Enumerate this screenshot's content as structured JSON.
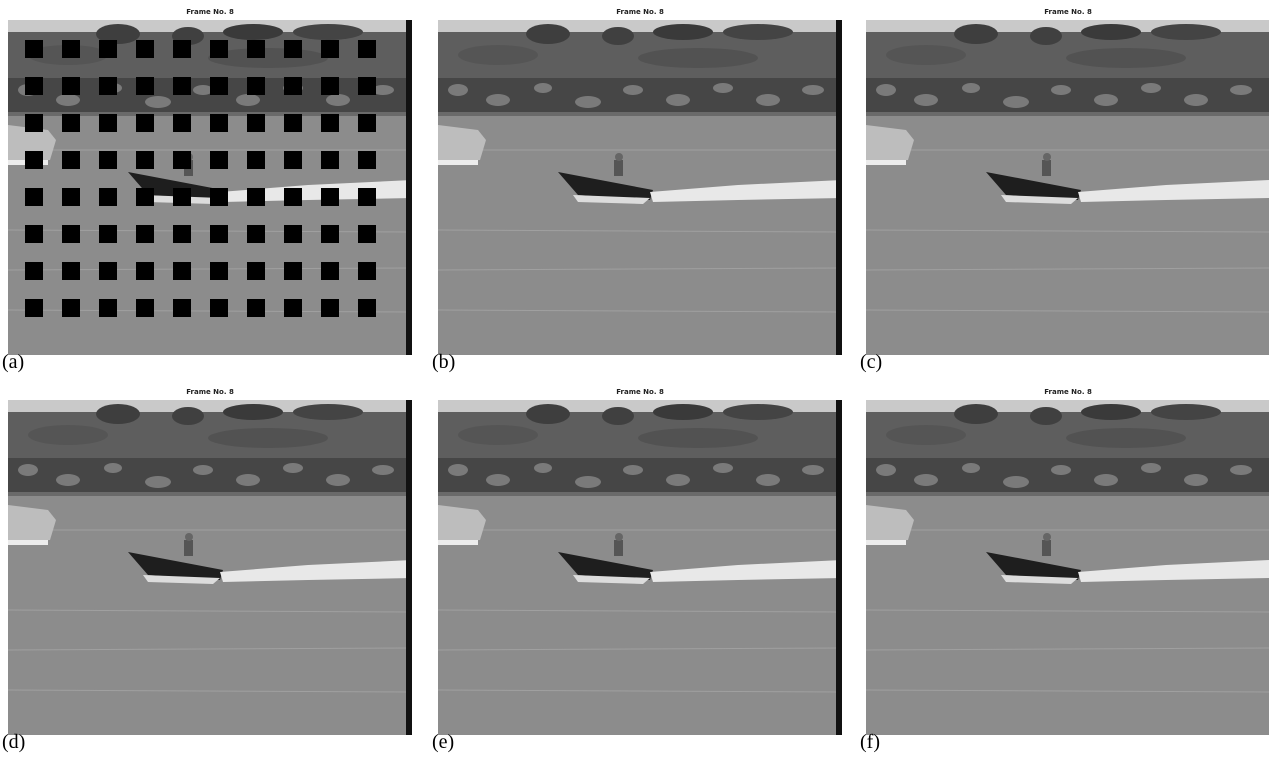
{
  "panels": [
    {
      "title": "Frame No. 8",
      "label": "(a)"
    },
    {
      "title": "Frame No. 8",
      "label": "(b)"
    },
    {
      "title": "Frame No. 8",
      "label": "(c)"
    },
    {
      "title": "Frame No. 8",
      "label": "(d)"
    },
    {
      "title": "Frame No. 8",
      "label": "(e)"
    },
    {
      "title": "Frame No. 8",
      "label": "(f)"
    }
  ]
}
